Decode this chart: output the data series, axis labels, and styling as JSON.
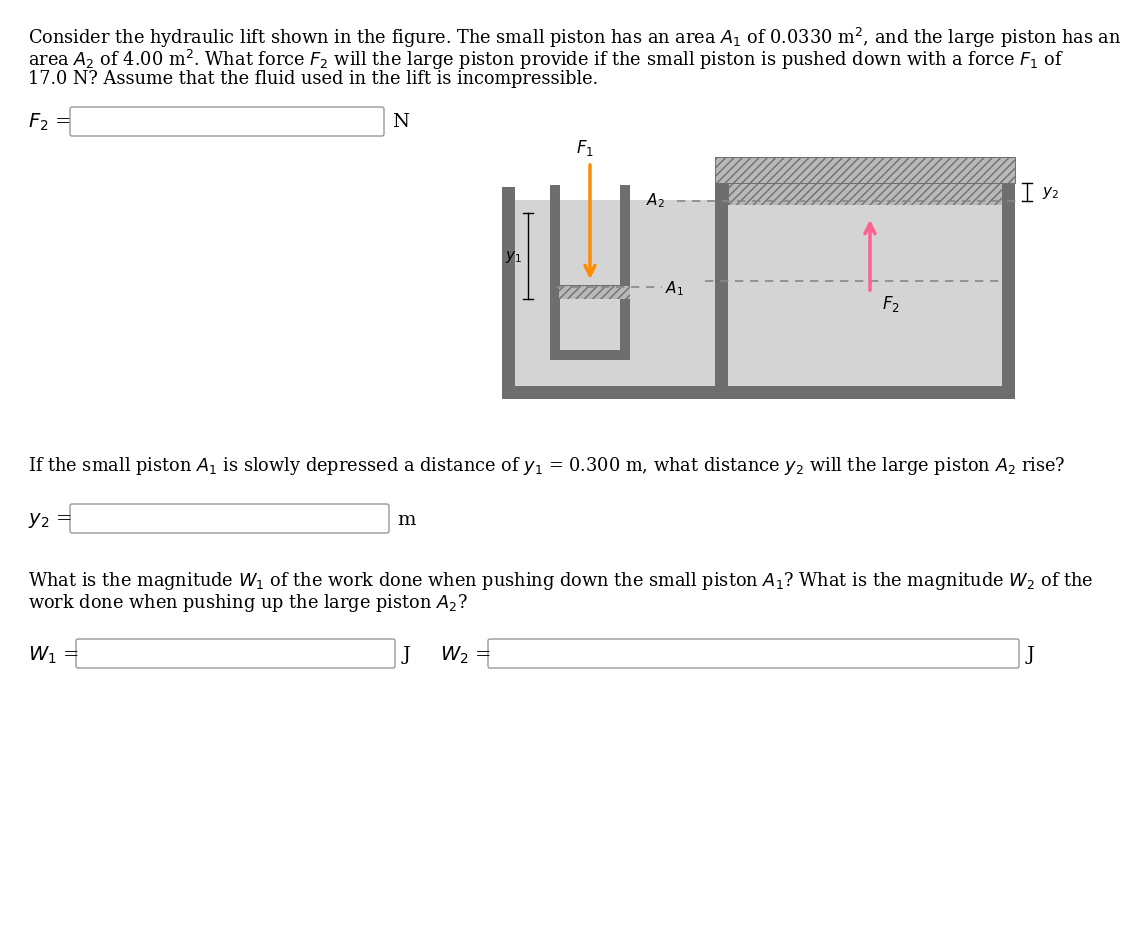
{
  "bg_color": "#ffffff",
  "dark_gray": "#6e6e6e",
  "medium_gray": "#999999",
  "light_gray": "#c8c8c8",
  "fluid_color": "#d4d4d4",
  "hatch_bg": "#b8b8b8",
  "orange_color": "#FF8C00",
  "pink_color": "#FF6090",
  "dashed_color": "#888888",
  "line1": "Consider the hydraulic lift shown in the figure. The small piston has an area $A_1$ of 0.0330 m$^2$, and the large piston has an",
  "line2": "area $A_2$ of 4.00 m$^2$. What force $F_2$ will the large piston provide if the small piston is pushed down with a force $F_1$ of",
  "line3": "17.0 N? Assume that the fluid used in the lift is incompressible.",
  "q2": "If the small piston $A_1$ is slowly depressed a distance of $y_1$ = 0.300 m, what distance $y_2$ will the large piston $A_2$ rise?",
  "q3a": "What is the magnitude $W_1$ of the work done when pushing down the small piston $A_1$? What is the magnitude $W_2$ of the",
  "q3b": "work done when pushing up the large piston $A_2$?"
}
